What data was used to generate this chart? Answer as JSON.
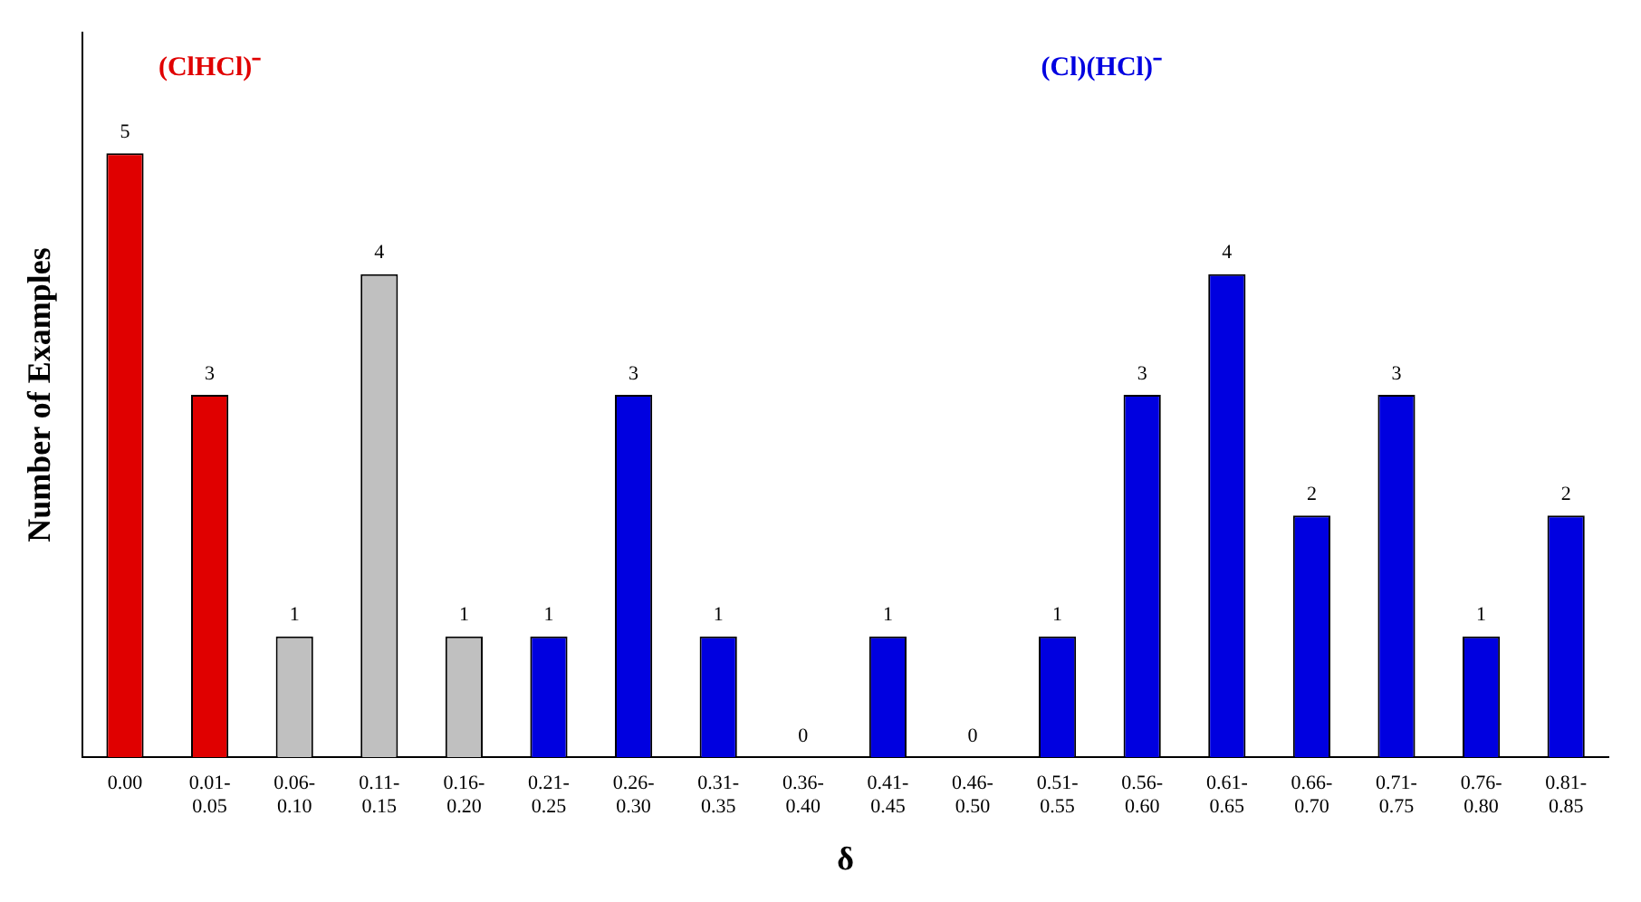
{
  "chart_data": {
    "type": "bar",
    "xlabel": "δ",
    "ylabel": "Number of Examples",
    "categories": [
      "0.00",
      "0.01-0.05",
      "0.06-0.10",
      "0.11-0.15",
      "0.16-0.20",
      "0.21-0.25",
      "0.26-0.30",
      "0.31-0.35",
      "0.36-0.40",
      "0.41-0.45",
      "0.46-0.50",
      "0.51-0.55",
      "0.56-0.60",
      "0.61-0.65",
      "0.66-0.70",
      "0.71-0.75",
      "0.76-0.80",
      "0.81-0.85"
    ],
    "values": [
      5,
      3,
      1,
      4,
      1,
      1,
      3,
      1,
      0,
      1,
      0,
      1,
      3,
      4,
      2,
      3,
      1,
      2
    ],
    "colors": [
      "#e00000",
      "#e00000",
      "#c0c0c0",
      "#c0c0c0",
      "#c0c0c0",
      "#0000e0",
      "#0000e0",
      "#0000e0",
      "#0000e0",
      "#0000e0",
      "#0000e0",
      "#0000e0",
      "#0000e0",
      "#0000e0",
      "#0000e0",
      "#0000e0",
      "#0000e0",
      "#0000e0"
    ],
    "data_labels": true,
    "grid": false,
    "legend": false,
    "annotations": [
      "(ClHCl)⁻",
      "(Cl)(HCl)⁻"
    ]
  }
}
